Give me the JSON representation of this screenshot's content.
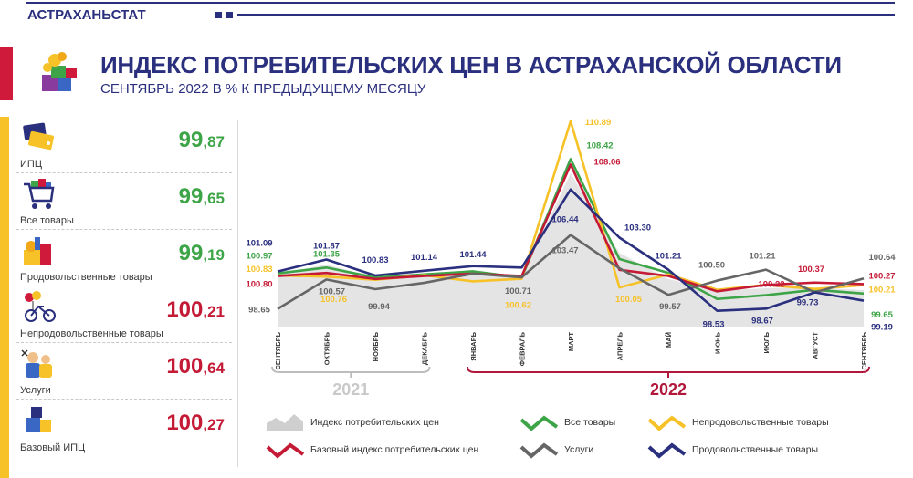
{
  "header": {
    "brand": "АСТРАХАНЬСТАТ",
    "title": "ИНДЕКС ПОТРЕБИТЕЛЬСКИХ ЦЕН В АСТРАХАНСКОЙ ОБЛАСТИ",
    "subtitle": "СЕНТЯБРЬ 2022 В % К ПРЕДЫДУЩЕМУ МЕСЯЦУ"
  },
  "panels": [
    {
      "icon": "price-tags-icon",
      "label": "ИПЦ",
      "int": "99",
      "dec": ",87",
      "color": "#3da447"
    },
    {
      "icon": "shopping-cart-icon",
      "label": "Все товары",
      "int": "99",
      "dec": ",65",
      "color": "#3da447"
    },
    {
      "icon": "groceries-icon",
      "label": "Продовольственные товары",
      "int": "99",
      "dec": ",19",
      "color": "#3da447"
    },
    {
      "icon": "bicycle-balloons-icon",
      "label": "Непродовольственные товары",
      "int": "100",
      "dec": ",21",
      "color": "#c41a36"
    },
    {
      "icon": "service-workers-icon",
      "label": "Услуги",
      "int": "100",
      "dec": ",64",
      "color": "#c41a36"
    },
    {
      "icon": "stacked-boxes-icon",
      "label": "Базовый ИПЦ",
      "int": "100",
      "dec": ",27",
      "color": "#c41a36"
    }
  ],
  "colors": {
    "navy": "#2a2f7e",
    "red": "#c41a36",
    "green": "#3da447",
    "yellow": "#f6c228",
    "gray": "#666666",
    "area": "#e4e4e4"
  },
  "chart_data": {
    "type": "line",
    "categories": [
      "СЕНТЯБРЬ",
      "ОКТЯБРЬ",
      "НОЯБРЬ",
      "ДЕКАБРЬ",
      "ЯНВАРЬ",
      "ФЕВРАЛЬ",
      "МАРТ",
      "АПРЕЛЬ",
      "МАЙ",
      "ИЮНЬ",
      "ИЮЛЬ",
      "АВГУСТ",
      "СЕНТЯБРЬ"
    ],
    "year_groups": [
      {
        "label": "2021",
        "from": 0,
        "to": 3
      },
      {
        "label": "2022",
        "from": 4,
        "to": 12
      }
    ],
    "ylim": [
      97.5,
      111.3
    ],
    "area_series": {
      "name": "Индекс потребительских цен",
      "values": [
        100.9,
        101.55,
        100.7,
        100.85,
        101.2,
        100.75,
        107.5,
        102.3,
        100.6,
        99.85,
        100.0,
        100.05,
        99.87
      ],
      "color": "#e4e4e4"
    },
    "series": [
      {
        "name": "Все товары",
        "color": "#3da447",
        "values": [
          100.97,
          101.35,
          100.7,
          100.9,
          101.1,
          100.7,
          108.42,
          101.9,
          101.0,
          99.3,
          99.55,
          99.9,
          99.65
        ]
      },
      {
        "name": "Непродовольственные товары",
        "color": "#f6c228",
        "values": [
          100.83,
          100.76,
          100.55,
          100.85,
          100.45,
          100.62,
          110.89,
          100.05,
          100.9,
          99.9,
          100.22,
          99.95,
          100.21
        ]
      },
      {
        "name": "Базовый индекс потребительских цен",
        "color": "#c41a36",
        "values": [
          100.8,
          101.0,
          100.6,
          100.8,
          100.95,
          100.8,
          108.06,
          101.2,
          100.8,
          99.8,
          100.22,
          100.37,
          100.27
        ]
      },
      {
        "name": "Услуги",
        "color": "#666666",
        "values": [
          98.65,
          100.57,
          99.94,
          100.35,
          100.95,
          100.71,
          103.47,
          101.3,
          99.57,
          100.5,
          101.21,
          99.73,
          100.64
        ]
      },
      {
        "name": "Продовольственные товары",
        "color": "#2a2f7e",
        "values": [
          101.09,
          101.87,
          100.83,
          101.14,
          101.44,
          101.35,
          106.44,
          103.3,
          101.21,
          98.53,
          98.67,
          99.73,
          99.19
        ]
      }
    ],
    "labels": [
      {
        "text": "101.09",
        "i": 0,
        "v": 101.09,
        "color": "#2a2f7e",
        "dx": -20,
        "dy": -28
      },
      {
        "text": "100.97",
        "i": 0,
        "v": 100.97,
        "color": "#3da447",
        "dx": -20,
        "dy": -16
      },
      {
        "text": "100.83",
        "i": 0,
        "v": 100.83,
        "color": "#f6c228",
        "dx": -20,
        "dy": -4
      },
      {
        "text": "100.80",
        "i": 0,
        "v": 100.8,
        "color": "#c41a36",
        "dx": -20,
        "dy": 12
      },
      {
        "text": "98.65",
        "i": 0,
        "v": 98.65,
        "color": "#666666",
        "dx": -20,
        "dy": 4
      },
      {
        "text": "101.87",
        "i": 1,
        "v": 101.87,
        "color": "#2a2f7e",
        "dx": 0,
        "dy": -12
      },
      {
        "text": "101.35",
        "i": 1,
        "v": 101.35,
        "color": "#3da447",
        "dx": 0,
        "dy": -12
      },
      {
        "text": "100.57",
        "i": 1,
        "v": 100.57,
        "color": "#666666",
        "dx": 6,
        "dy": 16
      },
      {
        "text": "100.76",
        "i": 1,
        "v": 100.76,
        "color": "#f6c228",
        "dx": 8,
        "dy": 28
      },
      {
        "text": "100.83",
        "i": 2,
        "v": 100.83,
        "color": "#2a2f7e",
        "dx": 0,
        "dy": -14
      },
      {
        "text": "99.94",
        "i": 2,
        "v": 99.94,
        "color": "#666666",
        "dx": 4,
        "dy": 22
      },
      {
        "text": "101.14",
        "i": 3,
        "v": 101.14,
        "color": "#2a2f7e",
        "dx": 0,
        "dy": -12
      },
      {
        "text": "101.44",
        "i": 4,
        "v": 101.44,
        "color": "#2a2f7e",
        "dx": 0,
        "dy": -10
      },
      {
        "text": "100.71",
        "i": 5,
        "v": 100.71,
        "color": "#666666",
        "dx": -4,
        "dy": 18
      },
      {
        "text": "100.62",
        "i": 5,
        "v": 100.62,
        "color": "#f6c228",
        "dx": -4,
        "dy": 32
      },
      {
        "text": "110.89",
        "i": 6,
        "v": 110.89,
        "color": "#f6c228",
        "dx": 30,
        "dy": 4
      },
      {
        "text": "108.42",
        "i": 6,
        "v": 108.42,
        "color": "#3da447",
        "dx": 32,
        "dy": -12
      },
      {
        "text": "108.06",
        "i": 6,
        "v": 108.06,
        "color": "#c41a36",
        "dx": 40,
        "dy": 0
      },
      {
        "text": "106.44",
        "i": 6,
        "v": 106.44,
        "color": "#2a2f7e",
        "dx": -6,
        "dy": 36
      },
      {
        "text": "103.47",
        "i": 6,
        "v": 103.47,
        "color": "#666666",
        "dx": -6,
        "dy": 20
      },
      {
        "text": "103.30",
        "i": 7,
        "v": 103.3,
        "color": "#2a2f7e",
        "dx": 20,
        "dy": -8
      },
      {
        "text": "100.05",
        "i": 7,
        "v": 100.05,
        "color": "#f6c228",
        "dx": 10,
        "dy": 16
      },
      {
        "text": "101.21",
        "i": 8,
        "v": 101.21,
        "color": "#2a2f7e",
        "dx": 0,
        "dy": -12
      },
      {
        "text": "99.57",
        "i": 8,
        "v": 99.57,
        "color": "#666666",
        "dx": 2,
        "dy": 16
      },
      {
        "text": "100.50",
        "i": 9,
        "v": 100.5,
        "color": "#666666",
        "dx": -6,
        "dy": -14
      },
      {
        "text": "98.53",
        "i": 9,
        "v": 98.53,
        "color": "#2a2f7e",
        "dx": -4,
        "dy": 18
      },
      {
        "text": "101.21",
        "i": 10,
        "v": 101.21,
        "color": "#666666",
        "dx": -4,
        "dy": -12
      },
      {
        "text": "100.22",
        "i": 10,
        "v": 100.22,
        "color": "#c41a36",
        "dx": 6,
        "dy": 2
      },
      {
        "text": "98.67",
        "i": 10,
        "v": 98.67,
        "color": "#2a2f7e",
        "dx": -4,
        "dy": 16
      },
      {
        "text": "100.37",
        "i": 11,
        "v": 100.37,
        "color": "#c41a36",
        "dx": -4,
        "dy": -12
      },
      {
        "text": "99.73",
        "i": 11,
        "v": 99.73,
        "color": "#2a2f7e",
        "dx": -8,
        "dy": 14
      },
      {
        "text": "100.64",
        "i": 12,
        "v": 100.64,
        "color": "#666666",
        "dx": 20,
        "dy": -20
      },
      {
        "text": "100.27",
        "i": 12,
        "v": 100.27,
        "color": "#c41a36",
        "dx": 20,
        "dy": -6
      },
      {
        "text": "100.21",
        "i": 12,
        "v": 100.21,
        "color": "#f6c228",
        "dx": 20,
        "dy": 8
      },
      {
        "text": "99.65",
        "i": 12,
        "v": 99.65,
        "color": "#3da447",
        "dx": 20,
        "dy": 26
      },
      {
        "text": "99.19",
        "i": 12,
        "v": 99.19,
        "color": "#2a2f7e",
        "dx": 20,
        "dy": 32
      }
    ],
    "legend": [
      {
        "name": "Индекс потребительских цен",
        "kind": "area",
        "color": "#cfcfcf"
      },
      {
        "name": "Все товары",
        "kind": "line",
        "color": "#3da447"
      },
      {
        "name": "Непродовольственные товары",
        "kind": "line",
        "color": "#f6c228"
      },
      {
        "name": "Базовый индекс потребительских цен",
        "kind": "line",
        "color": "#c41a36"
      },
      {
        "name": "Услуги",
        "kind": "line",
        "color": "#666666"
      },
      {
        "name": "Продовольственные товары",
        "kind": "line",
        "color": "#2a2f7e"
      }
    ]
  }
}
